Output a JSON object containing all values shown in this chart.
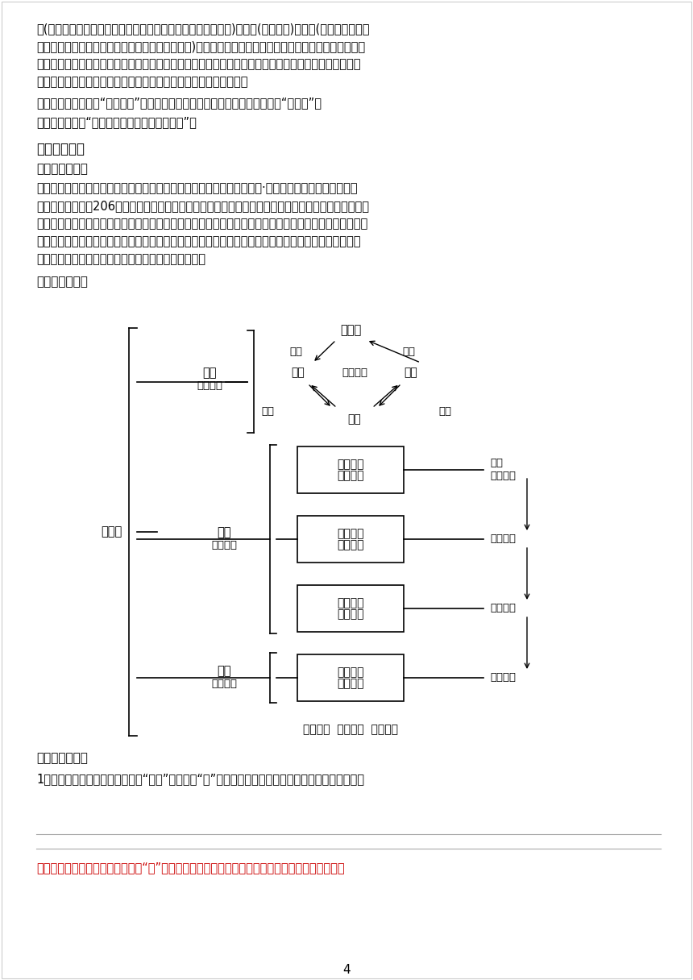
{
  "bg_color": "#ffffff",
  "text_color": "#000000",
  "red_color": "#cc0000",
  "page_number": "4",
  "para1": "传(记重要人物的言行事迹，主要叙人臣，其中最后一篇为自序)、十表(大事年表)、八书(记各种典章制度",
  "para1b": "记礼、乐、音律、历法、天文、封禪、水利、财用)。《史记》共一百三十篇，五十二万六千五百余字，比",
  "para1c": "《淮南子》多三十九万五千余字，比《吕氏春秋》多二十八万八千余字。《史记》规模巨大，体系完备，",
  "para1d": "而且对此后的纪传体史书影响很深，历朝正史皆采用这种体裁撰写。",
  "para2": "　　《史记》被列为“二十四史”之首，与《汉书》《后汉书》《三国志》合称“前四史”。",
  "para3": "　　被鲁迅誉为“史家之绝唱，无韵之《离骚》”。",
  "section3": "三、文本鉴赏",
  "sub1": "（一）整体感知",
  "body1": "　　《鸿门孴》是汉代史学家、文学家司马迁创作的史传文，出自《史记·项羽本纪》。文章叙述的是秦",
  "body1b": "朝灭亡后（公元前206年）两支抗秦军队的领袖项羽和刘邦在秦朝都城咏阳郊外的鸿门举行的一次孴会。",
  "body1c": "全文以刘邦赴项营请罪为核心，连同赴营以前和逃席以后分为三个部分，以曹无伤告密、项羽决定进攻始，",
  "body1d": "以项羽受璧、曹无伤被诛终，按项羽是否发动进攻、刘邦能否安然逃席两个问题逐层展开故事。情节跄趕",
  "body1e": "起伏，形象生动鲜明，组织周密严谨，语言精练优美。",
  "sub2": "（二）文脉梗理",
  "sub3": "（三）文本探究",
  "question1": "1．项羽接获曹无伤的密报，当即“大怒”，这一个“怒”字内涵相当丰富。请说说其中包含了哪些内容。",
  "red_answer": "就矛盾的焦点而言，天下虽大，但“王”只有一个；就力量对比而言，项羽占有绝对优势，何况秦军"
}
